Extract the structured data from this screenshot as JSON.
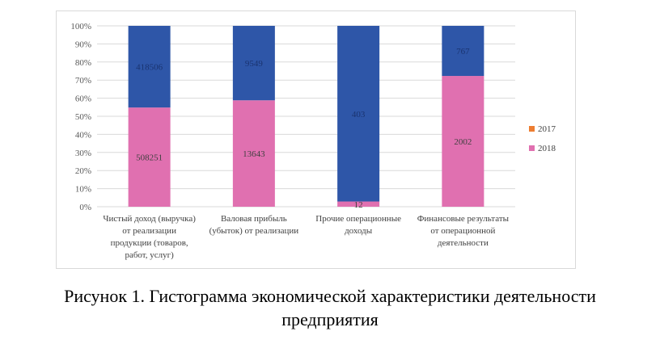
{
  "chart_data": {
    "type": "bar",
    "stacked": "percent",
    "categories": [
      [
        "Чистый доход (выручка)",
        "от реализации",
        "продукции (товаров,",
        "работ, услуг)"
      ],
      [
        "Валовая прибыль",
        "(убыток) от реализации"
      ],
      [
        "Прочие операционные",
        "доходы"
      ],
      [
        "Финансовые результаты",
        "от операционной",
        "деятельности"
      ]
    ],
    "series": [
      {
        "name": "2018",
        "color": "#e070b0",
        "values": [
          508251,
          13643,
          12,
          2002
        ],
        "labels": [
          "508251",
          "13643",
          "12",
          "2002"
        ]
      },
      {
        "name": "",
        "color": "#2e56a8",
        "values": [
          418506,
          9549,
          403,
          767
        ],
        "labels": [
          "418506",
          "9549",
          "403",
          "767"
        ]
      }
    ],
    "legend": [
      {
        "name": "2017",
        "color": "#ed7d31"
      },
      {
        "name": "2018",
        "color": "#e070b0"
      }
    ],
    "legend_position": "right",
    "y_ticks": [
      "0%",
      "10%",
      "20%",
      "30%",
      "40%",
      "50%",
      "60%",
      "70%",
      "80%",
      "90%",
      "100%"
    ],
    "ylim": [
      0,
      100
    ],
    "grid": true
  },
  "caption": {
    "line1": "Рисунок 1. Гистограмма экономической характеристики деятельности",
    "line2": "предприятия"
  }
}
